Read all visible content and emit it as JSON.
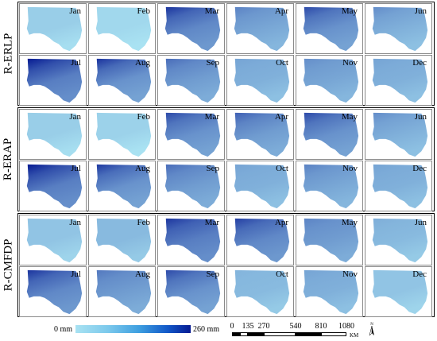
{
  "row_groups": [
    {
      "label": "R-ERLP",
      "months": [
        {
          "name": "Jan",
          "level": 0.1,
          "dark_edge": 0.0
        },
        {
          "name": "Feb",
          "level": 0.05,
          "dark_edge": 0.0
        },
        {
          "name": "Mar",
          "level": 0.45,
          "dark_edge": 0.7
        },
        {
          "name": "Apr",
          "level": 0.3,
          "dark_edge": 0.3
        },
        {
          "name": "May",
          "level": 0.4,
          "dark_edge": 0.6
        },
        {
          "name": "Jun",
          "level": 0.25,
          "dark_edge": 0.3
        },
        {
          "name": "Jul",
          "level": 0.5,
          "dark_edge": 0.95
        },
        {
          "name": "Aug",
          "level": 0.4,
          "dark_edge": 0.8
        },
        {
          "name": "Sep",
          "level": 0.35,
          "dark_edge": 0.4
        },
        {
          "name": "Oct",
          "level": 0.25,
          "dark_edge": 0.1
        },
        {
          "name": "Nov",
          "level": 0.3,
          "dark_edge": 0.2
        },
        {
          "name": "Dec",
          "level": 0.25,
          "dark_edge": 0.1
        }
      ]
    },
    {
      "label": "R-ERAP",
      "months": [
        {
          "name": "Jan",
          "level": 0.1,
          "dark_edge": 0.0
        },
        {
          "name": "Feb",
          "level": 0.08,
          "dark_edge": 0.0
        },
        {
          "name": "Mar",
          "level": 0.4,
          "dark_edge": 0.6
        },
        {
          "name": "Apr",
          "level": 0.35,
          "dark_edge": 0.5
        },
        {
          "name": "May",
          "level": 0.4,
          "dark_edge": 0.6
        },
        {
          "name": "Jun",
          "level": 0.25,
          "dark_edge": 0.3
        },
        {
          "name": "Jul",
          "level": 0.5,
          "dark_edge": 0.95
        },
        {
          "name": "Aug",
          "level": 0.4,
          "dark_edge": 0.75
        },
        {
          "name": "Sep",
          "level": 0.35,
          "dark_edge": 0.4
        },
        {
          "name": "Oct",
          "level": 0.25,
          "dark_edge": 0.1
        },
        {
          "name": "Nov",
          "level": 0.3,
          "dark_edge": 0.3
        },
        {
          "name": "Dec",
          "level": 0.25,
          "dark_edge": 0.1
        }
      ]
    },
    {
      "label": "R-CMFDP",
      "months": [
        {
          "name": "Jan",
          "level": 0.15,
          "dark_edge": 0.0
        },
        {
          "name": "Feb",
          "level": 0.2,
          "dark_edge": 0.0
        },
        {
          "name": "Mar",
          "level": 0.5,
          "dark_edge": 0.6
        },
        {
          "name": "Apr",
          "level": 0.45,
          "dark_edge": 0.6
        },
        {
          "name": "May",
          "level": 0.35,
          "dark_edge": 0.2
        },
        {
          "name": "Jun",
          "level": 0.2,
          "dark_edge": 0.1
        },
        {
          "name": "Jul",
          "level": 0.45,
          "dark_edge": 0.7
        },
        {
          "name": "Aug",
          "level": 0.35,
          "dark_edge": 0.3
        },
        {
          "name": "Sep",
          "level": 0.4,
          "dark_edge": 0.6
        },
        {
          "name": "Oct",
          "level": 0.2,
          "dark_edge": 0.05
        },
        {
          "name": "Nov",
          "level": 0.25,
          "dark_edge": 0.1
        },
        {
          "name": "Dec",
          "level": 0.15,
          "dark_edge": 0.0
        }
      ]
    }
  ],
  "legend": {
    "min_label": "0 mm",
    "max_label": "260 mm",
    "color_low": "#a9e2f2",
    "color_high": "#061a92"
  },
  "scale_bar": {
    "tick_labels": [
      "0",
      "135",
      "270",
      "540",
      "810",
      "1080"
    ],
    "unit": "KM"
  },
  "north_arrow": {
    "label": "N",
    "icon": "north-arrow-icon"
  }
}
